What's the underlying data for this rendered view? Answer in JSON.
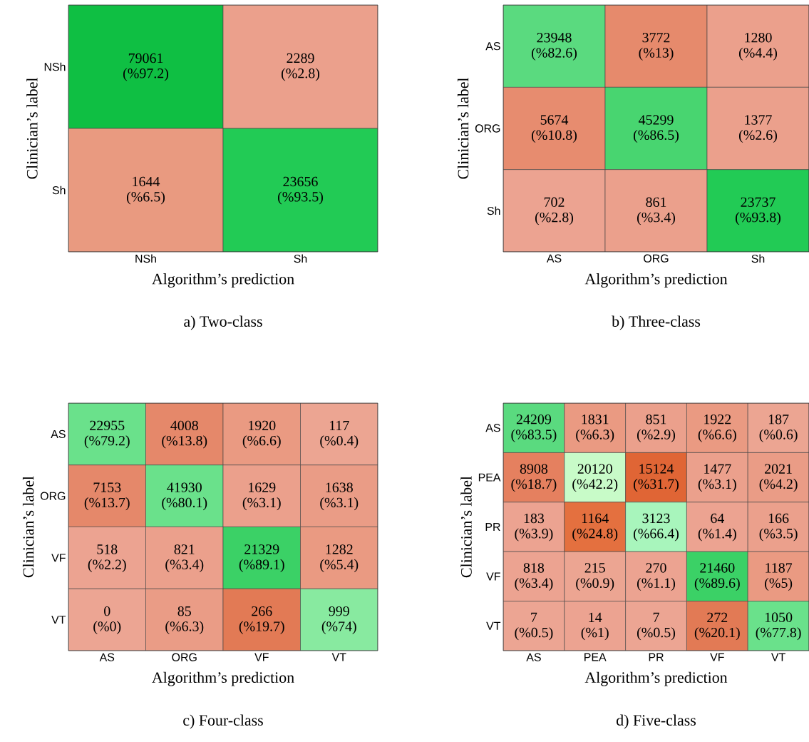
{
  "chart_data": [
    {
      "type": "heatmap",
      "title": "a) Two-class",
      "xlabel": "Algorithm’s prediction",
      "ylabel": "Clinician’s label",
      "categories": [
        "NSh",
        "Sh"
      ],
      "y_categories": [
        "NSh",
        "Sh"
      ],
      "data_labels": true,
      "cells": [
        [
          79061,
          2289
        ],
        [
          1644,
          23656
        ]
      ],
      "colors": [
        [
          "#0fbf43",
          "#eba08c"
        ],
        [
          "#e99a80",
          "#22cb55"
        ]
      ],
      "annotations": [
        "(%97.2)",
        "(%2.8)",
        "(%6.5)",
        "(%93.5)"
      ]
    },
    {
      "type": "heatmap",
      "title": "b) Three-class",
      "xlabel": "Algorithm’s prediction",
      "ylabel": "Clinician’s label",
      "categories": [
        "AS",
        "ORG",
        "Sh"
      ],
      "y_categories": [
        "AS",
        "ORG",
        "Sh"
      ],
      "data_labels": true,
      "cells": [
        [
          23948,
          3772,
          1280
        ],
        [
          5674,
          45299,
          1377
        ],
        [
          702,
          861,
          23737
        ]
      ],
      "colors": [
        [
          "#5ada7f",
          "#e68a6c",
          "#eba08c"
        ],
        [
          "#e78c6f",
          "#48d570",
          "#eba08c"
        ],
        [
          "#eca391",
          "#eba08c",
          "#22cb55"
        ]
      ],
      "annotations": [
        "(%82.6)",
        "(%13)",
        "(%4.4)",
        "(%10.8)",
        "(%86.5)",
        "(%2.6)",
        "(%2.8)",
        "(%3.4)",
        "(%93.8)"
      ]
    },
    {
      "type": "heatmap",
      "title": "c) Four-class",
      "xlabel": "Algorithm’s prediction",
      "ylabel": "Clinician’s label",
      "categories": [
        "AS",
        "ORG",
        "VF",
        "VT"
      ],
      "y_categories": [
        "AS",
        "ORG",
        "VF",
        "VT"
      ],
      "data_labels": true,
      "cells": [
        [
          22955,
          4008,
          1920,
          117
        ],
        [
          7153,
          41930,
          1629,
          1638
        ],
        [
          518,
          821,
          21329,
          1282
        ],
        [
          0,
          85,
          266,
          999
        ]
      ],
      "colors": [
        [
          "#6ae18b",
          "#e5886a",
          "#ea9a82",
          "#eca592"
        ],
        [
          "#e5886a",
          "#6ae18b",
          "#eba08c",
          "#ea9c86"
        ],
        [
          "#eca391",
          "#eba08c",
          "#3bd166",
          "#ea9a82"
        ],
        [
          "#eca593",
          "#ea9c86",
          "#e27a55",
          "#88eaa0"
        ]
      ],
      "annotations": [
        "(%79.2)",
        "(%13.8)",
        "(%6.6)",
        "(%0.4)",
        "(%13.7)",
        "(%80.1)",
        "(%3.1)",
        "(%3.1)",
        "(%2.2)",
        "(%3.4)",
        "(%89.1)",
        "(%5.4)",
        "(%0)",
        "(%6.3)",
        "(%19.7)",
        "(%74)"
      ]
    },
    {
      "type": "heatmap",
      "title": "d) Five-class",
      "xlabel": "Algorithm’s prediction",
      "ylabel": "Clinician’s label",
      "categories": [
        "AS",
        "PEA",
        "PR",
        "VF",
        "VT"
      ],
      "y_categories": [
        "AS",
        "PEA",
        "PR",
        "VF",
        "VT"
      ],
      "data_labels": true,
      "cells": [
        [
          24209,
          1831,
          851,
          1922,
          187
        ],
        [
          8908,
          20120,
          15124,
          1477,
          2021
        ],
        [
          183,
          1164,
          3123,
          64,
          166
        ],
        [
          818,
          215,
          270,
          21460,
          1187
        ],
        [
          7,
          14,
          7,
          272,
          1050
        ]
      ],
      "colors": [
        [
          "#5ada7f",
          "#ea9a82",
          "#eba08c",
          "#ea9a82",
          "#eca592"
        ],
        [
          "#e5805f",
          "#c8fbc8",
          "#e06535",
          "#eba08c",
          "#ea9c86"
        ],
        [
          "#eca391",
          "#e4703f",
          "#a8f5bc",
          "#eca391",
          "#eba08c"
        ],
        [
          "#eca391",
          "#eca592",
          "#eca391",
          "#3bd166",
          "#ea9a82"
        ],
        [
          "#eca593",
          "#eca391",
          "#eca593",
          "#e27a55",
          "#6ae18b"
        ]
      ],
      "annotations": [
        "(%83.5)",
        "(%6.3)",
        "(%2.9)",
        "(%6.6)",
        "(%0.6)",
        "(%18.7)",
        "(%42.2)",
        "(%31.7)",
        "(%3.1)",
        "(%4.2)",
        "(%3.9)",
        "(%24.8)",
        "(%66.4)",
        "(%1.4)",
        "(%3.5)",
        "(%3.4)",
        "(%0.9)",
        "(%1.1)",
        "(%89.6)",
        "(%5)",
        "(%0.5)",
        "(%1)",
        "(%0.5)",
        "(%20.1)",
        "(%77.8)"
      ]
    }
  ]
}
